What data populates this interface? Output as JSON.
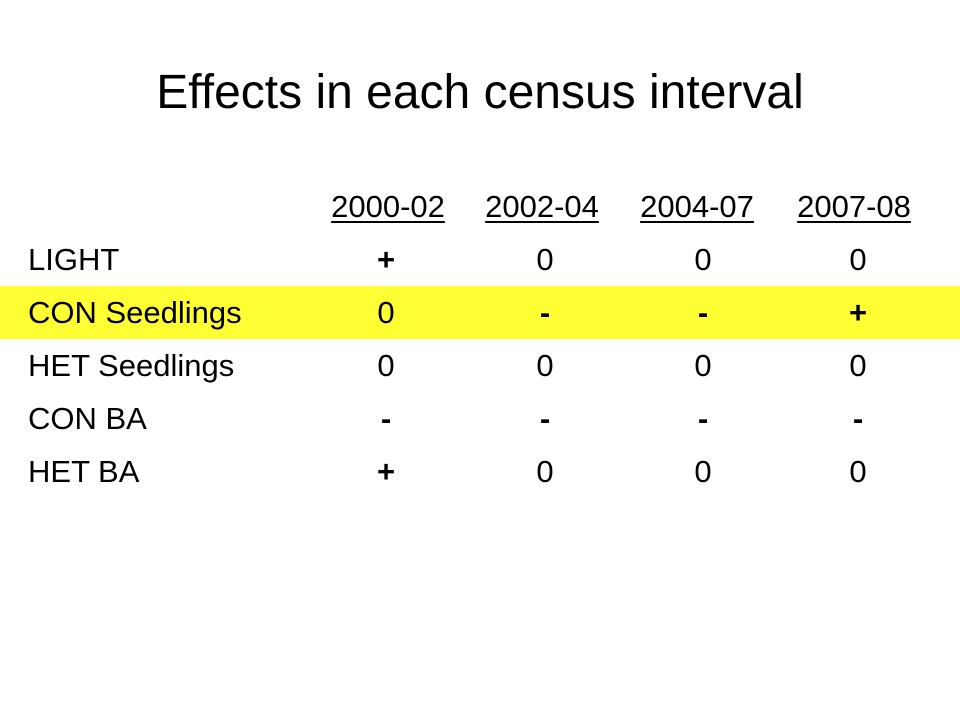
{
  "slide": {
    "title": "Effects in each census interval"
  },
  "table": {
    "headers": [
      "2000-02",
      "2002-04",
      "2004-07",
      "2007-08"
    ],
    "rows": [
      {
        "label": "LIGHT",
        "values": [
          "+",
          "0",
          "0",
          "0"
        ],
        "highlighted": false
      },
      {
        "label": "CON Seedlings",
        "values": [
          "0",
          "-",
          "-",
          "+"
        ],
        "highlighted": true
      },
      {
        "label": "HET Seedlings",
        "values": [
          "0",
          "0",
          "0",
          "0"
        ],
        "highlighted": false
      },
      {
        "label": "CON BA",
        "values": [
          "-",
          "-",
          "-",
          "-"
        ],
        "highlighted": false
      },
      {
        "label": "HET BA",
        "values": [
          "+",
          "0",
          "0",
          "0"
        ],
        "highlighted": false
      }
    ],
    "highlight_color": "#ffff33"
  }
}
